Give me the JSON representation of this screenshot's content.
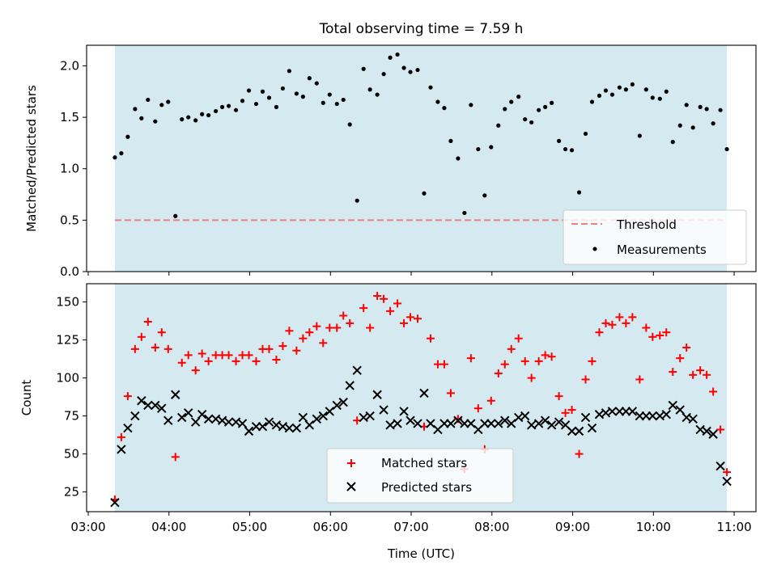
{
  "chart_data": [
    {
      "type": "scatter",
      "title": "Total observing time = 7.59 h",
      "xlabel": "",
      "ylabel": "Matched/Predicted stars",
      "x_unit": "hours UTC",
      "xlim": [
        2.98,
        11.27
      ],
      "ylim": [
        0,
        2.2
      ],
      "yticks": [
        0.0,
        0.5,
        1.0,
        1.5,
        2.0
      ],
      "ytick_labels": [
        "0.0",
        "0.5",
        "1.0",
        "1.5",
        "2.0"
      ],
      "observing_window": [
        3.33,
        10.91
      ],
      "window_color": "#d4eaf0",
      "threshold": 0.5,
      "threshold_color": "#ef8080",
      "legend_position": "lower right",
      "legend": [
        {
          "label": "Threshold",
          "marker": "dashed-line",
          "color": "#ef8080"
        },
        {
          "label": "Measurements",
          "marker": "dot",
          "color": "#000000"
        }
      ],
      "series": [
        {
          "name": "Measurements",
          "color": "#000000",
          "x": [
            3.33,
            3.41,
            3.49,
            3.58,
            3.66,
            3.74,
            3.83,
            3.91,
            3.99,
            4.08,
            4.16,
            4.24,
            4.33,
            4.41,
            4.49,
            4.58,
            4.66,
            4.74,
            4.83,
            4.91,
            4.99,
            5.08,
            5.16,
            5.24,
            5.33,
            5.41,
            5.49,
            5.58,
            5.66,
            5.74,
            5.83,
            5.91,
            5.99,
            6.08,
            6.16,
            6.24,
            6.33,
            6.41,
            6.49,
            6.58,
            6.66,
            6.74,
            6.83,
            6.91,
            6.99,
            7.08,
            7.16,
            7.24,
            7.33,
            7.41,
            7.49,
            7.58,
            7.66,
            7.74,
            7.83,
            7.91,
            7.99,
            8.08,
            8.16,
            8.24,
            8.33,
            8.41,
            8.49,
            8.58,
            8.66,
            8.74,
            8.83,
            8.91,
            8.99,
            9.08,
            9.16,
            9.24,
            9.33,
            9.41,
            9.49,
            9.58,
            9.66,
            9.74,
            9.83,
            9.91,
            9.99,
            10.08,
            10.16,
            10.24,
            10.33,
            10.41,
            10.49,
            10.58,
            10.66,
            10.74,
            10.83,
            10.91
          ],
          "y": [
            1.11,
            1.15,
            1.31,
            1.58,
            1.49,
            1.67,
            1.46,
            1.62,
            1.65,
            0.54,
            1.48,
            1.5,
            1.47,
            1.53,
            1.52,
            1.56,
            1.6,
            1.61,
            1.57,
            1.66,
            1.76,
            1.63,
            1.75,
            1.69,
            1.6,
            1.78,
            1.95,
            1.73,
            1.7,
            1.88,
            1.83,
            1.64,
            1.72,
            1.63,
            1.67,
            1.43,
            0.69,
            1.97,
            1.77,
            1.72,
            1.92,
            2.08,
            2.11,
            1.98,
            1.94,
            1.96,
            0.76,
            1.79,
            1.65,
            1.59,
            1.27,
            1.1,
            0.57,
            1.62,
            1.19,
            0.74,
            1.21,
            1.42,
            1.58,
            1.65,
            1.7,
            1.48,
            1.45,
            1.57,
            1.6,
            1.64,
            1.27,
            1.19,
            1.18,
            0.77,
            1.34,
            1.65,
            1.71,
            1.76,
            1.72,
            1.79,
            1.77,
            1.82,
            1.32,
            1.77,
            1.69,
            1.68,
            1.75,
            1.26,
            1.42,
            1.62,
            1.4,
            1.6,
            1.58,
            1.44,
            1.57,
            1.19
          ]
        }
      ]
    },
    {
      "type": "scatter",
      "title": "",
      "xlabel": "Time (UTC)",
      "ylabel": "Count",
      "x_unit": "hours UTC",
      "xlim": [
        2.98,
        11.27
      ],
      "ylim": [
        12,
        162
      ],
      "xticks": [
        3,
        4,
        5,
        6,
        7,
        8,
        9,
        10,
        11
      ],
      "xtick_labels": [
        "03:00",
        "04:00",
        "05:00",
        "06:00",
        "07:00",
        "08:00",
        "09:00",
        "10:00",
        "11:00"
      ],
      "yticks": [
        25,
        50,
        75,
        100,
        125,
        150
      ],
      "ytick_labels": [
        "25",
        "50",
        "75",
        "100",
        "125",
        "150"
      ],
      "observing_window": [
        3.33,
        10.91
      ],
      "window_color": "#d4eaf0",
      "legend_position": "lower center",
      "legend": [
        {
          "label": "Matched stars",
          "marker": "plus",
          "color": "#ff0000"
        },
        {
          "label": "Predicted stars",
          "marker": "x",
          "color": "#000000"
        }
      ],
      "series": [
        {
          "name": "Matched stars",
          "marker": "plus",
          "color": "#ff0000",
          "x": [
            3.33,
            3.41,
            3.49,
            3.58,
            3.66,
            3.74,
            3.83,
            3.91,
            3.99,
            4.08,
            4.16,
            4.24,
            4.33,
            4.41,
            4.49,
            4.58,
            4.66,
            4.74,
            4.83,
            4.91,
            4.99,
            5.08,
            5.16,
            5.24,
            5.33,
            5.41,
            5.49,
            5.58,
            5.66,
            5.74,
            5.83,
            5.91,
            5.99,
            6.08,
            6.16,
            6.24,
            6.33,
            6.41,
            6.49,
            6.58,
            6.66,
            6.74,
            6.83,
            6.91,
            6.99,
            7.08,
            7.16,
            7.24,
            7.33,
            7.41,
            7.49,
            7.58,
            7.66,
            7.74,
            7.83,
            7.91,
            7.99,
            8.08,
            8.16,
            8.24,
            8.33,
            8.41,
            8.49,
            8.58,
            8.66,
            8.74,
            8.83,
            8.91,
            8.99,
            9.08,
            9.16,
            9.24,
            9.33,
            9.41,
            9.49,
            9.58,
            9.66,
            9.74,
            9.83,
            9.91,
            9.99,
            10.08,
            10.16,
            10.24,
            10.33,
            10.41,
            10.49,
            10.58,
            10.66,
            10.74,
            10.83,
            10.91
          ],
          "y": [
            20,
            61,
            88,
            119,
            127,
            137,
            120,
            130,
            119,
            48,
            110,
            115,
            105,
            116,
            111,
            115,
            115,
            115,
            111,
            115,
            115,
            111,
            119,
            119,
            112,
            121,
            131,
            118,
            126,
            130,
            134,
            123,
            133,
            133,
            141,
            136,
            72,
            146,
            133,
            154,
            152,
            144,
            149,
            136,
            140,
            139,
            68,
            126,
            109,
            109,
            90,
            73,
            40,
            113,
            80,
            53,
            85,
            103,
            109,
            119,
            126,
            111,
            100,
            111,
            115,
            114,
            88,
            77,
            79,
            50,
            99,
            111,
            130,
            136,
            135,
            140,
            136,
            140,
            99,
            133,
            127,
            128,
            130,
            104,
            113,
            120,
            102,
            105,
            102,
            91,
            66,
            38
          ]
        },
        {
          "name": "Predicted stars",
          "marker": "x",
          "color": "#000000",
          "x": [
            3.33,
            3.41,
            3.49,
            3.58,
            3.66,
            3.74,
            3.83,
            3.91,
            3.99,
            4.08,
            4.16,
            4.24,
            4.33,
            4.41,
            4.49,
            4.58,
            4.66,
            4.74,
            4.83,
            4.91,
            4.99,
            5.08,
            5.16,
            5.24,
            5.33,
            5.41,
            5.49,
            5.58,
            5.66,
            5.74,
            5.83,
            5.91,
            5.99,
            6.08,
            6.16,
            6.24,
            6.33,
            6.41,
            6.49,
            6.58,
            6.66,
            6.74,
            6.83,
            6.91,
            6.99,
            7.08,
            7.16,
            7.24,
            7.33,
            7.41,
            7.49,
            7.58,
            7.66,
            7.74,
            7.83,
            7.91,
            7.99,
            8.08,
            8.16,
            8.24,
            8.33,
            8.41,
            8.49,
            8.58,
            8.66,
            8.74,
            8.83,
            8.91,
            8.99,
            9.08,
            9.16,
            9.24,
            9.33,
            9.41,
            9.49,
            9.58,
            9.66,
            9.74,
            9.83,
            9.91,
            9.99,
            10.08,
            10.16,
            10.24,
            10.33,
            10.41,
            10.49,
            10.58,
            10.66,
            10.74,
            10.83,
            10.91
          ],
          "y": [
            18,
            53,
            67,
            75,
            85,
            82,
            82,
            80,
            72,
            89,
            74,
            77,
            71,
            76,
            73,
            73,
            72,
            71,
            71,
            70,
            65,
            68,
            68,
            71,
            69,
            68,
            67,
            67,
            74,
            69,
            73,
            75,
            78,
            82,
            84,
            95,
            105,
            74,
            75,
            89,
            79,
            69,
            70,
            78,
            72,
            70,
            90,
            70,
            66,
            70,
            70,
            72,
            70,
            70,
            66,
            70,
            70,
            70,
            72,
            70,
            74,
            75,
            69,
            70,
            72,
            69,
            71,
            69,
            65,
            65,
            74,
            67,
            76,
            77,
            78,
            78,
            78,
            78,
            75,
            75,
            75,
            75,
            76,
            82,
            79,
            74,
            73,
            66,
            65,
            63,
            42,
            32
          ]
        }
      ]
    }
  ]
}
